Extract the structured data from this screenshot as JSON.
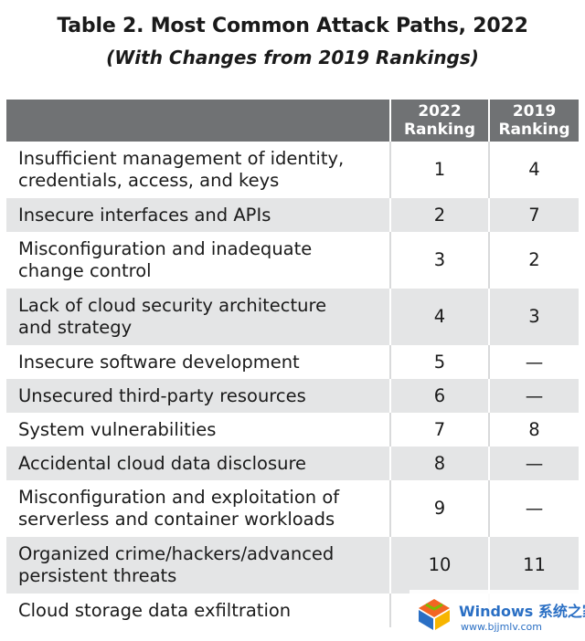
{
  "title": "Table 2. Most Common Attack Paths, 2022",
  "subtitle": "(With Changes from 2019 Rankings)",
  "table": {
    "headers": [
      "",
      "2022\nRanking",
      "2019\nRanking"
    ],
    "header_2022_line1": "2022",
    "header_2022_line2": "Ranking",
    "header_2019_line1": "2019",
    "header_2019_line2": "Ranking",
    "rows": [
      {
        "line1": "Insufficient management of identity,",
        "line2": "credentials, access, and keys",
        "r2022": "1",
        "r2019": "4"
      },
      {
        "line1": "Insecure interfaces and APIs",
        "line2": "",
        "r2022": "2",
        "r2019": "7"
      },
      {
        "line1": "Misconfiguration and inadequate",
        "line2": "change control",
        "r2022": "3",
        "r2019": "2"
      },
      {
        "line1": "Lack of cloud security architecture",
        "line2": "and strategy",
        "r2022": "4",
        "r2019": "3"
      },
      {
        "line1": "Insecure software development",
        "line2": "",
        "r2022": "5",
        "r2019": "—"
      },
      {
        "line1": "Unsecured third-party resources",
        "line2": "",
        "r2022": "6",
        "r2019": "—"
      },
      {
        "line1": "System vulnerabilities",
        "line2": "",
        "r2022": "7",
        "r2019": "8"
      },
      {
        "line1": "Accidental cloud data disclosure",
        "line2": "",
        "r2022": "8",
        "r2019": "—"
      },
      {
        "line1": "Misconfiguration and exploitation of",
        "line2": "serverless and container workloads",
        "r2022": "9",
        "r2019": "—"
      },
      {
        "line1": "Organized crime/hackers/advanced",
        "line2": "persistent threats",
        "r2022": "10",
        "r2019": "11"
      },
      {
        "line1": "Cloud storage data exfiltration",
        "line2": "",
        "r2022": "",
        "r2019": ""
      }
    ]
  },
  "watermark": {
    "brand": "Windows 系统之家",
    "url": "www.bjjmlv.com",
    "logo_icon": "windows-logo-icon"
  },
  "colors": {
    "header_bg": "#707274",
    "stripe_bg": "#e4e5e6",
    "watermark_blue": "#2a6fc4"
  }
}
